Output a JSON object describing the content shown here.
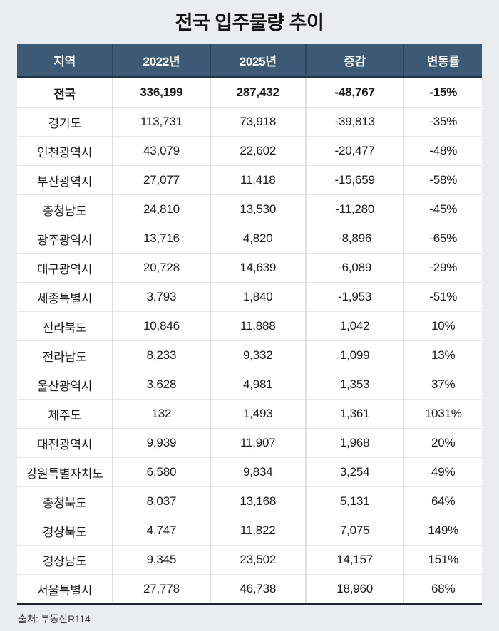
{
  "title": "전국 입주물량 추이",
  "source": "출처: 부동산R114",
  "colors": {
    "page_bg": "#e9edf2",
    "header_bg": "#3c5a75",
    "header_text": "#ffffff",
    "header_underline": "#1f3549",
    "table_bottom_border": "#1b2531",
    "column_divider": "#dde1e6",
    "row_divider": "#e3e6ea",
    "body_text": "#1a1a1a"
  },
  "chart_data": {
    "type": "table",
    "title": "전국 입주물량 추이",
    "columns": [
      "지역",
      "2022년",
      "2025년",
      "증감",
      "변동률"
    ],
    "rows": [
      {
        "region": "전국",
        "y2022": "336,199",
        "y2025": "287,432",
        "change": "-48,767",
        "rate": "-15%",
        "bold": true
      },
      {
        "region": "경기도",
        "y2022": "113,731",
        "y2025": "73,918",
        "change": "-39,813",
        "rate": "-35%",
        "bold": false
      },
      {
        "region": "인천광역시",
        "y2022": "43,079",
        "y2025": "22,602",
        "change": "-20,477",
        "rate": "-48%",
        "bold": false
      },
      {
        "region": "부산광역시",
        "y2022": "27,077",
        "y2025": "11,418",
        "change": "-15,659",
        "rate": "-58%",
        "bold": false
      },
      {
        "region": "충청남도",
        "y2022": "24,810",
        "y2025": "13,530",
        "change": "-11,280",
        "rate": "-45%",
        "bold": false
      },
      {
        "region": "광주광역시",
        "y2022": "13,716",
        "y2025": "4,820",
        "change": "-8,896",
        "rate": "-65%",
        "bold": false
      },
      {
        "region": "대구광역시",
        "y2022": "20,728",
        "y2025": "14,639",
        "change": "-6,089",
        "rate": "-29%",
        "bold": false
      },
      {
        "region": "세종특별시",
        "y2022": "3,793",
        "y2025": "1,840",
        "change": "-1,953",
        "rate": "-51%",
        "bold": false
      },
      {
        "region": "전라북도",
        "y2022": "10,846",
        "y2025": "11,888",
        "change": "1,042",
        "rate": "10%",
        "bold": false
      },
      {
        "region": "전라남도",
        "y2022": "8,233",
        "y2025": "9,332",
        "change": "1,099",
        "rate": "13%",
        "bold": false
      },
      {
        "region": "울산광역시",
        "y2022": "3,628",
        "y2025": "4,981",
        "change": "1,353",
        "rate": "37%",
        "bold": false
      },
      {
        "region": "제주도",
        "y2022": "132",
        "y2025": "1,493",
        "change": "1,361",
        "rate": "1031%",
        "bold": false
      },
      {
        "region": "대전광역시",
        "y2022": "9,939",
        "y2025": "11,907",
        "change": "1,968",
        "rate": "20%",
        "bold": false
      },
      {
        "region": "강원특별자치도",
        "y2022": "6,580",
        "y2025": "9,834",
        "change": "3,254",
        "rate": "49%",
        "bold": false
      },
      {
        "region": "충청북도",
        "y2022": "8,037",
        "y2025": "13,168",
        "change": "5,131",
        "rate": "64%",
        "bold": false
      },
      {
        "region": "경상북도",
        "y2022": "4,747",
        "y2025": "11,822",
        "change": "7,075",
        "rate": "149%",
        "bold": false
      },
      {
        "region": "경상남도",
        "y2022": "9,345",
        "y2025": "23,502",
        "change": "14,157",
        "rate": "151%",
        "bold": false
      },
      {
        "region": "서울특별시",
        "y2022": "27,778",
        "y2025": "46,738",
        "change": "18,960",
        "rate": "68%",
        "bold": false
      }
    ]
  }
}
